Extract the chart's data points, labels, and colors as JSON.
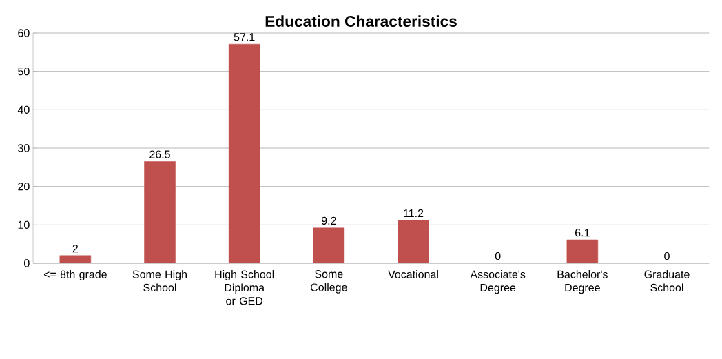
{
  "chart_data": {
    "type": "bar",
    "title": "Education Characteristics",
    "categories": [
      "<= 8th grade",
      "Some High School",
      "High School Diploma or GED",
      "Some College",
      "Vocational",
      "Associate's Degree",
      "Bachelor's Degree",
      "Graduate School"
    ],
    "values": [
      2,
      26.5,
      57.1,
      9.2,
      11.2,
      0,
      6.1,
      0
    ],
    "color": "#c0504d",
    "ylim": [
      0,
      60
    ],
    "yticks": [
      0,
      10,
      20,
      30,
      40,
      50,
      60
    ],
    "grid": "y",
    "data_labels": true
  }
}
